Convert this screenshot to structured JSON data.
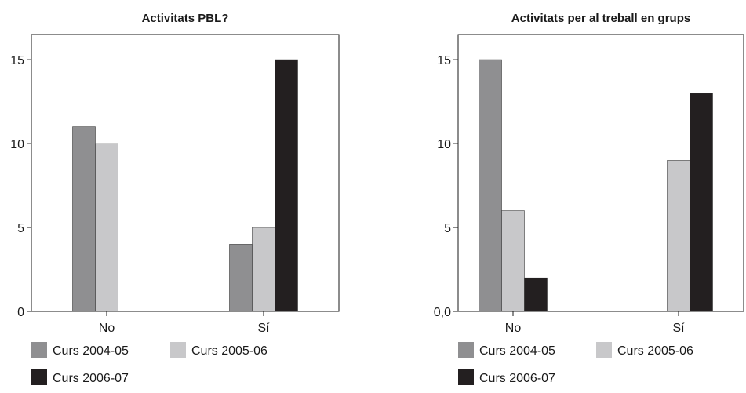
{
  "chart_data": [
    {
      "type": "bar",
      "title": "Activitats PBL?",
      "categories": [
        "No",
        "Sí"
      ],
      "series": [
        {
          "name": "Curs 2004-05",
          "values": [
            11,
            4
          ],
          "color": "#8f8f91"
        },
        {
          "name": "Curs 2005-06",
          "values": [
            10,
            5
          ],
          "color": "#c8c8ca"
        },
        {
          "name": "Curs 2006-07",
          "values": [
            0,
            15
          ],
          "color": "#231f20"
        }
      ],
      "yticks": [
        "0",
        "5",
        "10",
        "15"
      ],
      "ytick_values": [
        0,
        5,
        10,
        15
      ],
      "ylim": [
        0,
        16.5
      ],
      "legend_position": "bottom"
    },
    {
      "type": "bar",
      "title": "Activitats per al treball en grups",
      "categories": [
        "No",
        "Sí"
      ],
      "series": [
        {
          "name": "Curs 2004-05",
          "values": [
            15,
            0
          ],
          "color": "#8f8f91"
        },
        {
          "name": "Curs 2005-06",
          "values": [
            6,
            9
          ],
          "color": "#c8c8ca"
        },
        {
          "name": "Curs 2006-07",
          "values": [
            2,
            13
          ],
          "color": "#231f20"
        }
      ],
      "yticks": [
        "0,0",
        "5",
        "10",
        "15"
      ],
      "ytick_values": [
        0,
        5,
        10,
        15
      ],
      "ylim": [
        0,
        16.5
      ],
      "legend_position": "bottom"
    }
  ]
}
